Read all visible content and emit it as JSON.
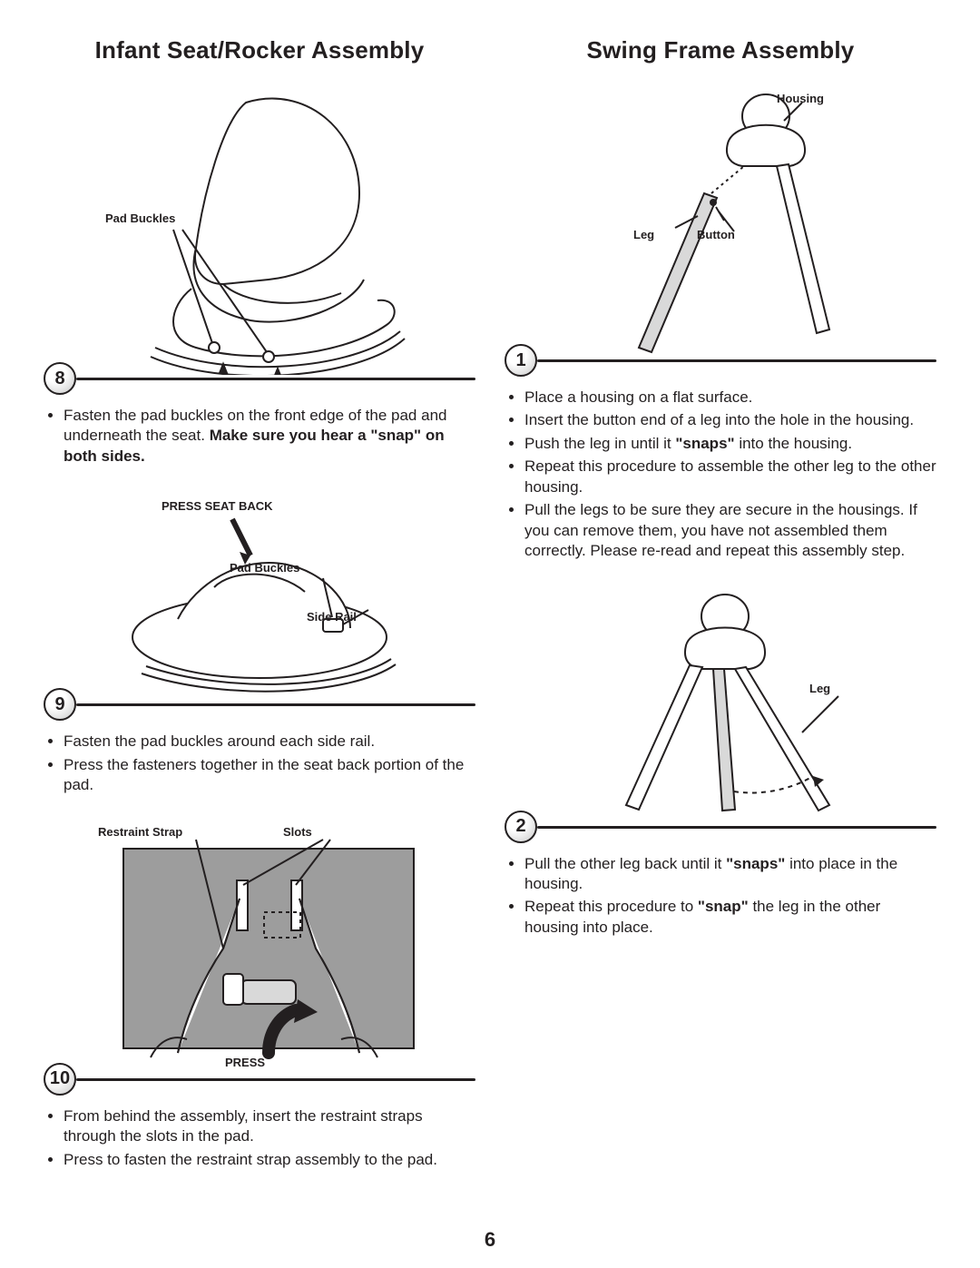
{
  "page_number": "6",
  "left": {
    "title": "Infant Seat/Rocker Assembly",
    "step8": {
      "num": "8",
      "callouts": {
        "pad_buckles": "Pad Buckles"
      },
      "notes": [
        "Fasten the pad buckles on the front edge of the pad and underneath the seat. <b>Make sure you hear a \"snap\" on both sides.</b>"
      ]
    },
    "step9": {
      "num": "9",
      "callouts": {
        "press_seat_back": "PRESS SEAT BACK",
        "pad_buckles": "Pad Buckles",
        "side_rail": "Side Rail"
      },
      "notes": [
        "Fasten the pad buckles around each side rail.",
        "Press the fasteners together in the seat back portion of the pad."
      ]
    },
    "step10": {
      "num": "10",
      "callouts": {
        "restraint_strap": "Restraint Strap",
        "slots": "Slots",
        "press": "PRESS"
      },
      "notes": [
        "From behind the assembly, insert the restraint straps through the slots in the pad.",
        "Press to fasten the restraint strap assembly to the pad."
      ]
    }
  },
  "right": {
    "title": "Swing Frame Assembly",
    "step1": {
      "num": "1",
      "callouts": {
        "housing": "Housing",
        "leg": "Leg",
        "button": "Button"
      },
      "notes": [
        "Place a housing on a flat surface.",
        "Insert the button end of a leg into the hole in the housing.",
        "Push the leg in until it <b>\"snaps\"</b> into the housing.",
        "Repeat this procedure to assemble the other leg to the other housing.",
        "Pull the legs to be sure they are secure in the housings. If you can remove them, you have not assembled them correctly. Please re-read and repeat this assembly step."
      ]
    },
    "step2": {
      "num": "2",
      "callouts": {
        "leg": "Leg"
      },
      "notes": [
        "Pull the other leg back until it <b>\"snaps\"</b> into place in the housing.",
        "Repeat this procedure to <b>\"snap\"</b> the leg in the other housing into place."
      ]
    }
  },
  "style": {
    "stroke": "#231f20",
    "fill_pad": "#9d9d9d",
    "fill_light": "#d9d9d9",
    "fill_white": "#ffffff",
    "accent_line_width": 2,
    "title_fontsize": 26,
    "callout_fontsize": 13,
    "note_fontsize": 17,
    "pagenum_fontsize": 22
  }
}
